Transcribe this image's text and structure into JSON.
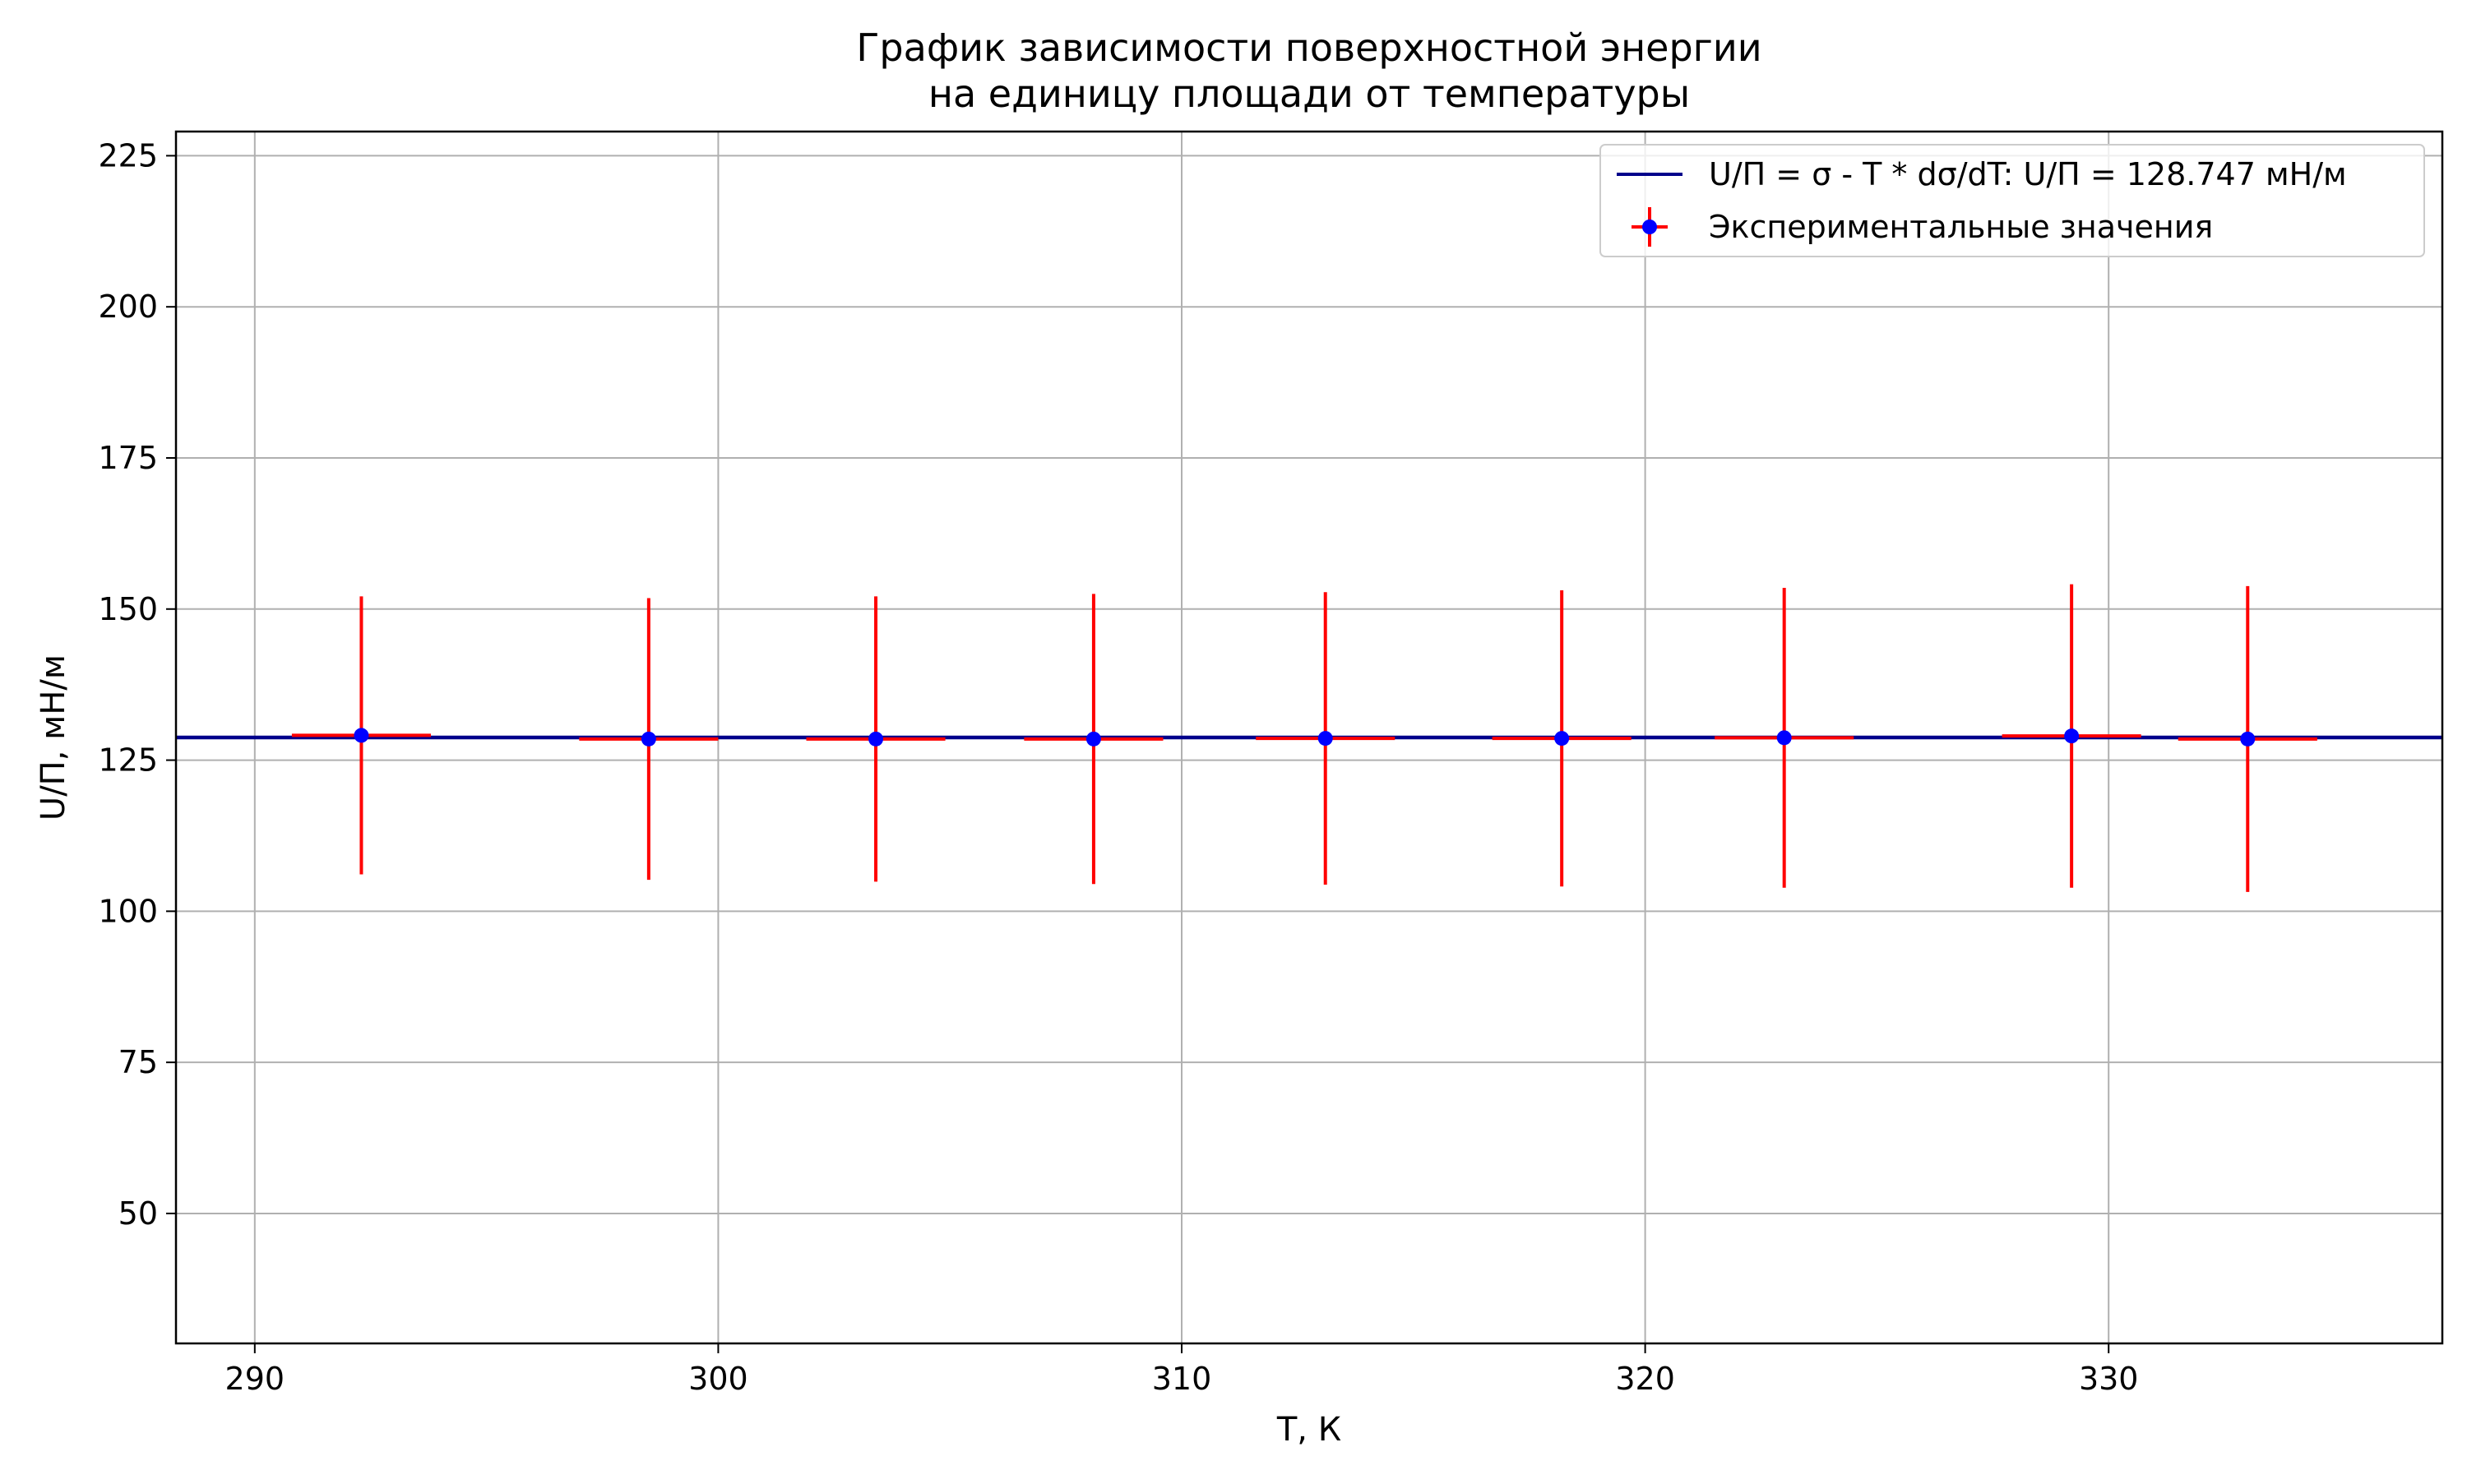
{
  "chart_data": {
    "type": "scatter",
    "title_lines": [
      "График зависимости поверхностной энергии",
      "на единицу площади от температуры"
    ],
    "xlabel": "T, К",
    "ylabel": "U/П, мН/м",
    "xlim": [
      288.3,
      337.2
    ],
    "ylim": [
      28.5,
      229.0
    ],
    "xticks": [
      290,
      300,
      310,
      320,
      330
    ],
    "yticks": [
      50,
      75,
      100,
      125,
      150,
      175,
      200,
      225
    ],
    "grid": true,
    "legend_position": "upper right",
    "fit_line": {
      "label": "U/П = σ - T * dσ/dT: U/П = 128.747 мН/м",
      "value": 128.747,
      "color": "#00008b"
    },
    "series": [
      {
        "name": "Экспериментальные значения",
        "color": "#0000ff",
        "errorbar_color": "#ff0000",
        "x": [
          292.3,
          298.5,
          303.4,
          308.1,
          313.1,
          318.2,
          323.0,
          329.2,
          333.0
        ],
        "y": [
          129.1,
          128.5,
          128.5,
          128.5,
          128.6,
          128.6,
          128.7,
          129.0,
          128.5
        ],
        "yerr": [
          23.0,
          23.3,
          23.6,
          24.0,
          24.2,
          24.5,
          24.8,
          25.1,
          25.3
        ],
        "xerr": [
          1.5,
          1.5,
          1.5,
          1.5,
          1.5,
          1.5,
          1.5,
          1.5,
          1.5
        ]
      }
    ]
  }
}
